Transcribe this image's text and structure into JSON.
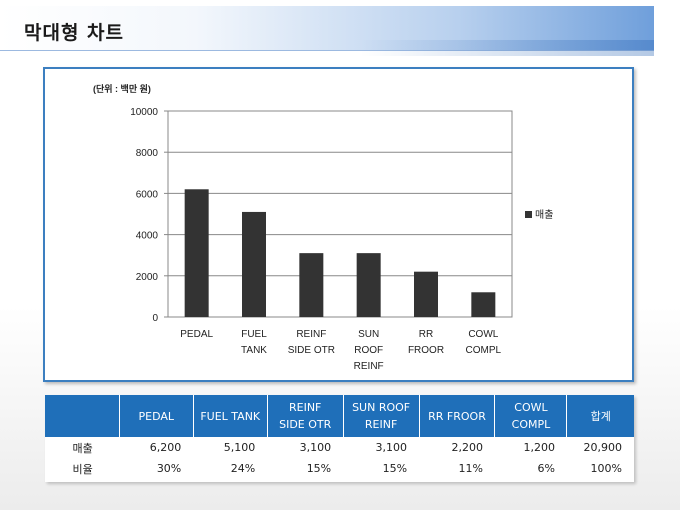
{
  "page": {
    "title": "막대형 차트"
  },
  "chart_data": {
    "type": "bar",
    "unit_note": "(단위 : 백만 원)",
    "categories": [
      [
        "PEDAL"
      ],
      [
        "FUEL",
        "TANK"
      ],
      [
        "REINF",
        "SIDE OTR"
      ],
      [
        "SUN",
        "ROOF",
        "REINF"
      ],
      [
        "RR",
        "FROOR"
      ],
      [
        "COWL",
        "COMPL"
      ]
    ],
    "series": [
      {
        "name": "매출",
        "values": [
          6200,
          5100,
          3100,
          3100,
          2200,
          1200
        ],
        "color": "#333333"
      }
    ],
    "ylim": [
      0,
      10000
    ],
    "yticks": [
      0,
      2000,
      4000,
      6000,
      8000,
      10000
    ],
    "grid": true,
    "legend": "right"
  },
  "table": {
    "headers": [
      "",
      "PEDAL",
      "FUEL TANK",
      "REINF\nSIDE OTR",
      "SUN ROOF\nREINF",
      "RR FROOR",
      "COWL\nCOMPL",
      "합계"
    ],
    "rows": [
      [
        "매출",
        "6,200",
        "5,100",
        "3,100",
        "3,100",
        "2,200",
        "1,200",
        "20,900"
      ],
      [
        "비율",
        "30%",
        "24%",
        "15%",
        "15%",
        "11%",
        "6%",
        "100%"
      ]
    ]
  },
  "colors": {
    "accent": "#1f6fb9",
    "frame": "#3c7fc0",
    "bar": "#333333"
  }
}
